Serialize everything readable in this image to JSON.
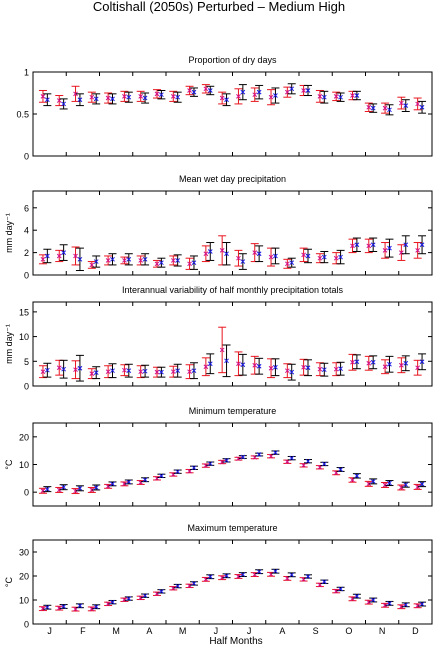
{
  "figure": {
    "title": "Coltishall (2050s) Perturbed – Medium High",
    "xlabel": "Half Months",
    "months": [
      "J",
      "F",
      "M",
      "A",
      "M",
      "J",
      "J",
      "A",
      "S",
      "O",
      "N",
      "D"
    ]
  },
  "colors": {
    "series_a": "#e8141e",
    "series_b": "#000000",
    "marker_a": "#d0108c",
    "marker_b": "#1a1ae6"
  },
  "chart_data": [
    {
      "type": "scatter",
      "title": "Proportion of dry days",
      "ylabel": "",
      "ylim": [
        0,
        1
      ],
      "yticks": [
        0,
        0.5,
        1
      ],
      "yticklabels": [
        "0",
        "0.5",
        "1"
      ],
      "x": [
        1,
        2,
        3,
        4,
        5,
        6,
        7,
        8,
        9,
        10,
        11,
        12,
        13,
        14,
        15,
        16,
        17,
        18,
        19,
        20,
        21,
        22,
        23,
        24
      ],
      "series": [
        {
          "mean": [
            0.71,
            0.66,
            0.74,
            0.7,
            0.69,
            0.71,
            0.71,
            0.74,
            0.71,
            0.78,
            0.8,
            0.69,
            0.71,
            0.73,
            0.7,
            0.76,
            0.78,
            0.71,
            0.71,
            0.72,
            0.58,
            0.57,
            0.63,
            0.62
          ],
          "err": [
            0.07,
            0.06,
            0.09,
            0.06,
            0.06,
            0.06,
            0.06,
            0.05,
            0.06,
            0.05,
            0.05,
            0.07,
            0.09,
            0.08,
            0.09,
            0.06,
            0.06,
            0.07,
            0.05,
            0.05,
            0.05,
            0.06,
            0.07,
            0.07
          ]
        },
        {
          "mean": [
            0.67,
            0.62,
            0.67,
            0.68,
            0.68,
            0.7,
            0.69,
            0.73,
            0.7,
            0.76,
            0.78,
            0.67,
            0.76,
            0.76,
            0.72,
            0.8,
            0.78,
            0.7,
            0.7,
            0.72,
            0.57,
            0.55,
            0.6,
            0.58
          ],
          "err": [
            0.07,
            0.06,
            0.07,
            0.06,
            0.06,
            0.06,
            0.06,
            0.05,
            0.06,
            0.05,
            0.05,
            0.07,
            0.09,
            0.08,
            0.09,
            0.06,
            0.06,
            0.07,
            0.05,
            0.05,
            0.05,
            0.06,
            0.07,
            0.07
          ]
        }
      ]
    },
    {
      "type": "scatter",
      "title": "Mean wet day precipitation",
      "ylabel": "mm day⁻¹",
      "ylim": [
        0,
        7.5
      ],
      "yticks": [
        0,
        2,
        4,
        6
      ],
      "yticklabels": [
        "0",
        "2",
        "4",
        "6"
      ],
      "x": [
        1,
        2,
        3,
        4,
        5,
        6,
        7,
        8,
        9,
        10,
        11,
        12,
        13,
        14,
        15,
        16,
        17,
        18,
        19,
        20,
        21,
        22,
        23,
        24
      ],
      "series": [
        {
          "mean": [
            1.4,
            1.7,
            1.7,
            0.9,
            1.3,
            1.3,
            1.3,
            1.0,
            1.3,
            1.0,
            1.9,
            2.2,
            1.5,
            2.0,
            1.6,
            1.0,
            1.8,
            1.5,
            1.5,
            2.6,
            2.6,
            2.2,
            2.0,
            2.2
          ],
          "err": [
            0.4,
            0.5,
            0.8,
            0.3,
            0.4,
            0.3,
            0.4,
            0.3,
            0.4,
            0.5,
            0.7,
            1.3,
            0.7,
            0.8,
            0.8,
            0.4,
            0.6,
            0.4,
            0.5,
            0.6,
            0.6,
            0.7,
            0.7,
            0.7
          ]
        },
        {
          "mean": [
            1.7,
            2.0,
            1.4,
            1.2,
            1.4,
            1.4,
            1.4,
            1.1,
            1.3,
            1.1,
            2.1,
            1.9,
            1.2,
            1.9,
            1.7,
            1.1,
            1.7,
            1.6,
            1.6,
            2.7,
            2.7,
            2.4,
            2.7,
            2.7
          ],
          "err": [
            0.6,
            0.7,
            1.0,
            0.5,
            0.5,
            0.5,
            0.5,
            0.4,
            0.5,
            0.6,
            0.8,
            1.0,
            0.7,
            0.7,
            0.7,
            0.4,
            0.6,
            0.5,
            0.6,
            0.6,
            0.6,
            0.8,
            0.8,
            0.8
          ]
        }
      ]
    },
    {
      "type": "scatter",
      "title": "Interannual variability of half monthly precipitation totals",
      "ylabel": "mm day⁻¹",
      "ylim": [
        0,
        17
      ],
      "yticks": [
        0,
        5,
        10,
        15
      ],
      "yticklabels": [
        "0",
        "5",
        "10",
        "15"
      ],
      "x": [
        1,
        2,
        3,
        4,
        5,
        6,
        7,
        8,
        9,
        10,
        11,
        12,
        13,
        14,
        15,
        16,
        17,
        18,
        19,
        20,
        21,
        22,
        23,
        24
      ],
      "series": [
        {
          "mean": [
            2.9,
            3.7,
            3.3,
            2.5,
            2.9,
            3.2,
            2.9,
            2.8,
            2.9,
            2.9,
            3.9,
            7.3,
            4.5,
            4.2,
            3.6,
            3.1,
            3.8,
            3.4,
            3.4,
            4.8,
            4.6,
            3.9,
            4.2,
            3.7
          ],
          "err": [
            1.2,
            1.5,
            1.8,
            1.0,
            1.2,
            1.1,
            1.2,
            1.0,
            1.1,
            1.4,
            1.8,
            4.6,
            2.4,
            1.8,
            1.9,
            1.4,
            1.6,
            1.3,
            1.3,
            1.6,
            1.4,
            1.4,
            1.5,
            1.5
          ]
        },
        {
          "mean": [
            3.2,
            3.4,
            3.6,
            2.7,
            3.1,
            3.1,
            3.0,
            2.8,
            3.1,
            3.1,
            4.5,
            5.1,
            4.3,
            4.0,
            3.8,
            2.8,
            3.7,
            3.3,
            3.5,
            4.9,
            4.8,
            4.4,
            4.6,
            4.9
          ],
          "err": [
            1.4,
            1.8,
            2.6,
            1.2,
            1.4,
            1.3,
            1.2,
            1.0,
            1.3,
            1.6,
            2.0,
            3.2,
            2.1,
            1.6,
            1.7,
            1.6,
            1.6,
            1.3,
            1.3,
            1.4,
            1.3,
            1.6,
            1.5,
            1.6
          ]
        }
      ]
    },
    {
      "type": "scatter",
      "title": "Minimum temperature",
      "ylabel": "°C",
      "ylim": [
        -5,
        25
      ],
      "yticks": [
        0,
        10,
        20
      ],
      "yticklabels": [
        "0",
        "10",
        "20"
      ],
      "x": [
        1,
        2,
        3,
        4,
        5,
        6,
        7,
        8,
        9,
        10,
        11,
        12,
        13,
        14,
        15,
        16,
        17,
        18,
        19,
        20,
        21,
        22,
        23,
        24
      ],
      "series": [
        {
          "mean": [
            0.5,
            0.8,
            0.4,
            0.8,
            2.1,
            3.0,
            3.5,
            5.0,
            6.4,
            7.6,
            9.6,
            10.9,
            12.1,
            12.6,
            13.0,
            11.0,
            9.7,
            9.0,
            7.0,
            4.4,
            3.0,
            2.6,
            1.7,
            1.9
          ],
          "err": [
            0.9,
            0.9,
            0.9,
            0.9,
            0.7,
            0.7,
            0.7,
            0.6,
            0.6,
            0.6,
            0.6,
            0.6,
            0.5,
            0.5,
            0.6,
            0.6,
            0.6,
            0.6,
            0.7,
            0.8,
            0.9,
            0.9,
            0.9,
            0.9
          ]
        },
        {
          "mean": [
            1.1,
            1.8,
            1.4,
            1.7,
            3.0,
            3.7,
            4.5,
            5.9,
            7.4,
            8.8,
            10.3,
            11.5,
            12.7,
            13.6,
            14.3,
            12.3,
            11.2,
            10.2,
            8.2,
            5.9,
            3.9,
            3.3,
            2.7,
            2.9
          ],
          "err": [
            0.9,
            0.9,
            0.9,
            0.9,
            0.7,
            0.7,
            0.7,
            0.6,
            0.6,
            0.6,
            0.6,
            0.6,
            0.5,
            0.5,
            0.6,
            0.6,
            0.6,
            0.6,
            0.7,
            0.8,
            0.9,
            0.9,
            0.9,
            0.9
          ]
        }
      ]
    },
    {
      "type": "scatter",
      "title": "Maximum temperature",
      "ylabel": "°C",
      "ylim": [
        0,
        35
      ],
      "yticks": [
        0,
        10,
        20,
        30
      ],
      "yticklabels": [
        "0",
        "10",
        "20",
        "30"
      ],
      "x": [
        1,
        2,
        3,
        4,
        5,
        6,
        7,
        8,
        9,
        10,
        11,
        12,
        13,
        14,
        15,
        16,
        17,
        18,
        19,
        20,
        21,
        22,
        23,
        24
      ],
      "series": [
        {
          "mean": [
            6.4,
            6.6,
            6.2,
            6.3,
            8.4,
            10.1,
            10.9,
            12.6,
            14.9,
            15.9,
            18.6,
            19.3,
            19.8,
            20.6,
            20.7,
            19.0,
            18.6,
            16.3,
            13.7,
            10.5,
            9.1,
            7.8,
            7.2,
            7.6
          ],
          "err": [
            0.8,
            0.8,
            0.8,
            0.8,
            0.7,
            0.7,
            0.7,
            0.7,
            0.7,
            0.7,
            0.8,
            0.8,
            0.8,
            0.8,
            0.8,
            0.8,
            0.7,
            0.7,
            0.7,
            0.8,
            0.8,
            0.8,
            0.8,
            0.8
          ]
        },
        {
          "mean": [
            7.0,
            7.3,
            7.6,
            7.2,
            9.1,
            10.6,
            11.8,
            13.6,
            15.8,
            16.9,
            19.7,
            20.1,
            20.6,
            21.8,
            22.0,
            20.5,
            19.8,
            17.6,
            14.6,
            11.6,
            10.0,
            8.6,
            8.0,
            8.3
          ],
          "err": [
            0.8,
            0.8,
            0.8,
            0.8,
            0.7,
            0.7,
            0.7,
            0.7,
            0.7,
            0.7,
            0.8,
            0.8,
            0.8,
            0.8,
            0.8,
            0.8,
            0.7,
            0.7,
            0.7,
            0.8,
            0.8,
            0.8,
            0.8,
            0.8
          ]
        }
      ]
    }
  ]
}
